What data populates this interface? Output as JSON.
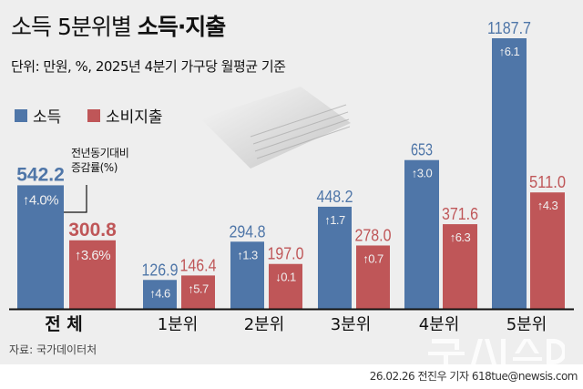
{
  "title_normal": "소득 5분위별 ",
  "title_bold": "소득·지출",
  "subtitle": "단위: 만원, %, 2025년 4분기 가구당 월평균 기준",
  "legend": [
    {
      "label": "소득",
      "color": "#4f76a8"
    },
    {
      "label": "소비지출",
      "color": "#bf5658"
    }
  ],
  "note_line1": "전년동기대비",
  "note_line2": "증감률(%)",
  "source": "자료: 국가데이터처",
  "credit": "26.02.26 전진우 기자 618tue@newsis.com",
  "watermark": "뉴시스",
  "chart_data": {
    "type": "bar",
    "categories": [
      "전 체",
      "1분위",
      "2분위",
      "3분위",
      "4분위",
      "5분위"
    ],
    "series": [
      {
        "name": "소득",
        "color": "#4f76a8",
        "values": [
          542.2,
          126.9,
          294.8,
          448.2,
          653,
          1187.7
        ],
        "changes": [
          {
            "dir": "up",
            "text": "4.0%"
          },
          {
            "dir": "up",
            "text": "4.6"
          },
          {
            "dir": "up",
            "text": "1.3"
          },
          {
            "dir": "up",
            "text": "1.7"
          },
          {
            "dir": "up",
            "text": "3.0"
          },
          {
            "dir": "up",
            "text": "6.1"
          }
        ]
      },
      {
        "name": "소비지출",
        "color": "#bf5658",
        "values": [
          300.8,
          146.4,
          197.0,
          278.0,
          371.6,
          511.0
        ],
        "changes": [
          {
            "dir": "up",
            "text": "3.6%"
          },
          {
            "dir": "up",
            "text": "5.7"
          },
          {
            "dir": "down",
            "text": "0.1"
          },
          {
            "dir": "up",
            "text": "0.7"
          },
          {
            "dir": "up",
            "text": "6.3"
          },
          {
            "dir": "up",
            "text": "4.3"
          }
        ]
      }
    ],
    "value_labels": [
      [
        "542.2",
        "126.9",
        "294.8",
        "448.2",
        "653",
        "1187.7"
      ],
      [
        "300.8",
        "146.4",
        "197.0",
        "278.0",
        "371.6",
        "511.0"
      ]
    ],
    "ylim": [
      0,
      1200
    ],
    "grid": false,
    "legend_position": "top-left"
  }
}
